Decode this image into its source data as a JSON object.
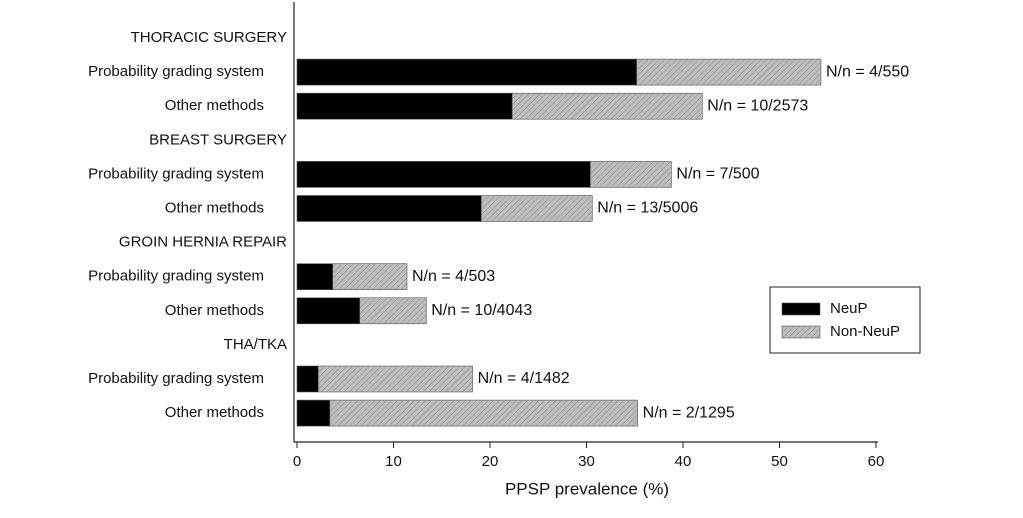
{
  "chart_data": {
    "type": "stacked-barh",
    "xlabel": "PPSP prevalence (%)",
    "categories": [
      "THORACIC SURGERY",
      "Probability grading system",
      "Other methods",
      "BREAST SURGERY",
      "Probability grading system",
      "Other methods",
      "GROIN HERNIA REPAIR",
      "Probability grading system",
      "Other methods",
      "THA/TKA",
      "Probability grading system",
      "Other methods"
    ],
    "series": [
      {
        "name": "NeuP",
        "color": "#000000",
        "values": [
          null,
          35.2,
          22.3,
          null,
          30.4,
          19.1,
          null,
          3.7,
          6.5,
          null,
          2.2,
          3.4
        ]
      },
      {
        "name": "Non-NeuP",
        "color": "#b5b5b5",
        "values": [
          null,
          19.1,
          19.7,
          null,
          8.4,
          11.5,
          null,
          7.7,
          6.9,
          null,
          16.0,
          31.9
        ]
      }
    ],
    "bar_labels": [
      null,
      "N/n = 4/550",
      "N/n = 10/2573",
      null,
      "N/n = 7/500",
      "N/n = 13/5006",
      null,
      "N/n = 4/503",
      "N/n = 10/4043",
      null,
      "N/n = 4/1482",
      "N/n = 2/1295"
    ],
    "xlim": [
      0,
      60
    ],
    "xticks": [
      0,
      10,
      20,
      30,
      40,
      50,
      60
    ],
    "legend": "lower right"
  }
}
